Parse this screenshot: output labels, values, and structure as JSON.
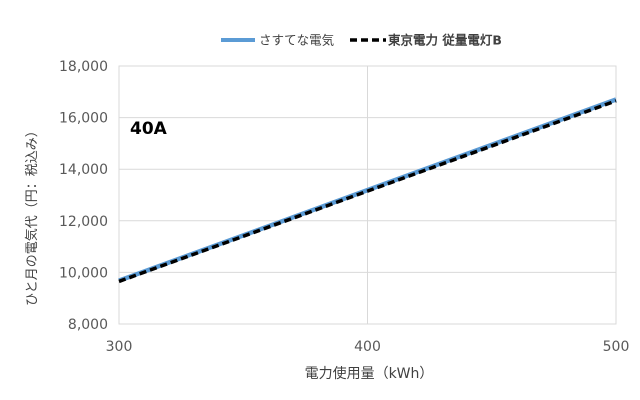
{
  "chart_data": {
    "type": "line",
    "title": "",
    "annotation": "40A",
    "xlabel": "電力使用量（kWh）",
    "ylabel": "ひと月の電気代（円：税込み）",
    "xlim": [
      300,
      500
    ],
    "ylim": [
      8000,
      18000
    ],
    "x_ticks": [
      300,
      400,
      500
    ],
    "y_ticks": [
      8000,
      10000,
      12000,
      14000,
      16000,
      18000
    ],
    "x_tick_labels": [
      "300",
      "400",
      "500"
    ],
    "y_tick_labels": [
      "8,000",
      "10,000",
      "12,000",
      "14,000",
      "16,000",
      "18,000"
    ],
    "grid": true,
    "legend_position": "top",
    "series": [
      {
        "name": "さすてな電気",
        "style": "solid",
        "color": "#5b9bd5",
        "x": [
          300,
          500
        ],
        "y": [
          9680,
          16700
        ]
      },
      {
        "name": "東京電力 従量電灯B",
        "style": "dashed",
        "color": "#000000",
        "x": [
          300,
          500
        ],
        "y": [
          9650,
          16650
        ]
      }
    ]
  }
}
